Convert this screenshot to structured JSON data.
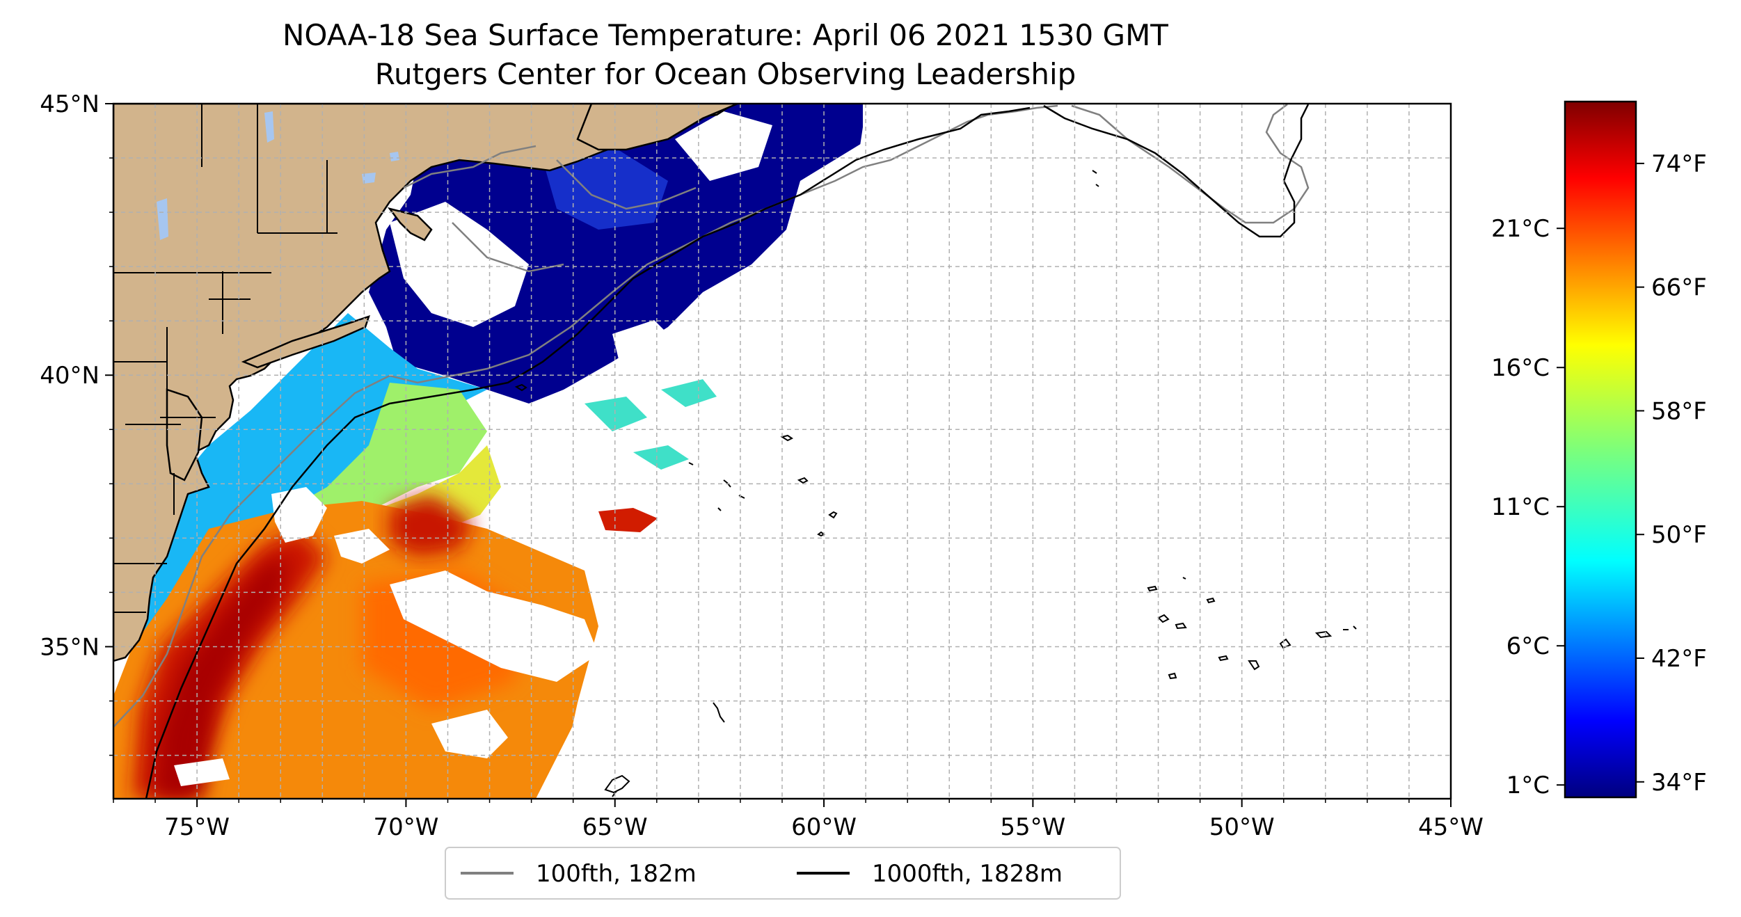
{
  "title": {
    "line1": "NOAA-18 Sea Surface Temperature: April 06 2021 1530 GMT",
    "line2": "Rutgers Center for Ocean Observing Leadership"
  },
  "map": {
    "lon_range": [
      -77,
      -45
    ],
    "lat_range": [
      32.2,
      45
    ],
    "x_ticks": [
      {
        "value": -75,
        "label": "75°W"
      },
      {
        "value": -70,
        "label": "70°W"
      },
      {
        "value": -65,
        "label": "65°W"
      },
      {
        "value": -60,
        "label": "60°W"
      },
      {
        "value": -55,
        "label": "55°W"
      },
      {
        "value": -50,
        "label": "50°W"
      },
      {
        "value": -45,
        "label": "45°W"
      }
    ],
    "y_ticks": [
      {
        "value": 45,
        "label": "45°N"
      },
      {
        "value": 40,
        "label": "40°N"
      },
      {
        "value": 35,
        "label": "35°N"
      }
    ],
    "grid": true,
    "colors": {
      "land": "#d2b48c",
      "lakes": "#a6c6f0",
      "grid": "#b0b0b0",
      "isobath_100fth": "#808080",
      "isobath_1000fth": "#000000"
    }
  },
  "colorbar": {
    "colormap": "jet",
    "celsius_ticks": [
      {
        "value": 21,
        "label": "21°C"
      },
      {
        "value": 16,
        "label": "16°C"
      },
      {
        "value": 11,
        "label": "11°C"
      },
      {
        "value": 6,
        "label": "6°C"
      },
      {
        "value": 1,
        "label": "1°C"
      }
    ],
    "fahrenheit_ticks": [
      {
        "value": 74,
        "label": "74°F"
      },
      {
        "value": 66,
        "label": "66°F"
      },
      {
        "value": 58,
        "label": "58°F"
      },
      {
        "value": 50,
        "label": "50°F"
      },
      {
        "value": 42,
        "label": "42°F"
      },
      {
        "value": 34,
        "label": "34°F"
      }
    ],
    "range_f": [
      33,
      78
    ]
  },
  "legend": {
    "placement": "bottom-center",
    "items": [
      {
        "label": "100fth, 182m",
        "color": "#808080"
      },
      {
        "label": "1000fth, 1828m",
        "color": "#000000"
      }
    ]
  }
}
